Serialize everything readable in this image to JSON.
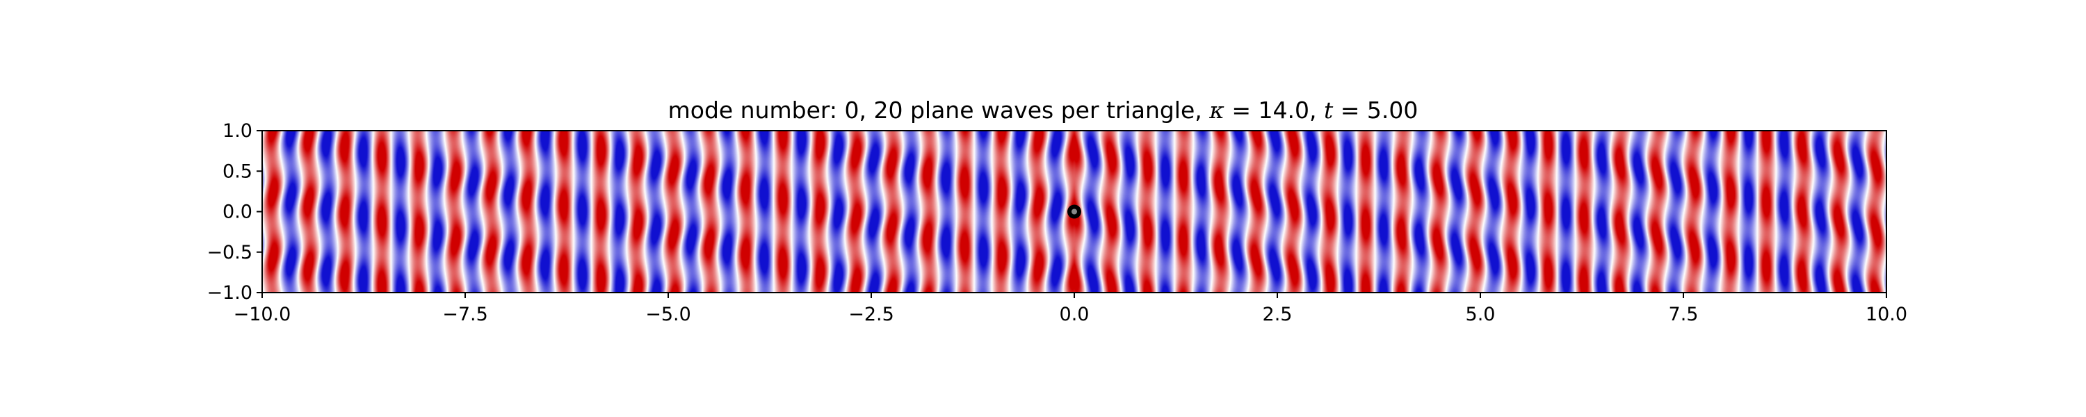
{
  "chart_data": {
    "type": "heatmap",
    "title_parts": {
      "prefix": "mode number: 0, 20 plane waves per triangle, ",
      "kappa_symbol": "κ",
      "kappa_eq": " = 14.0, ",
      "t_symbol": "t",
      "t_eq": " = 5.00"
    },
    "xlabel": "",
    "ylabel": "",
    "xlim": [
      -10.0,
      10.0
    ],
    "ylim": [
      -1.0,
      1.0
    ],
    "x_ticks": [
      -10.0,
      -7.5,
      -5.0,
      -2.5,
      0.0,
      2.5,
      5.0,
      7.5,
      10.0
    ],
    "x_tick_labels": [
      "−10.0",
      "−7.5",
      "−5.0",
      "−2.5",
      "0.0",
      "2.5",
      "5.0",
      "7.5",
      "10.0"
    ],
    "y_ticks": [
      1.0,
      0.5,
      0.0,
      -0.5,
      -1.0
    ],
    "y_tick_labels": [
      "1.0",
      "0.5",
      "0.0",
      "−0.5",
      "−1.0"
    ],
    "colormap": {
      "negative": "#1010d0",
      "zero": "#ffffff",
      "positive": "#d00000"
    },
    "field": {
      "wavenumber": 14.0,
      "transverse_mode_count": 5,
      "transverse_modulation": 0.35
    },
    "source_marker": {
      "x": 0.0,
      "y": 0.0,
      "color": "#000000"
    },
    "grid": false,
    "legend": "none"
  }
}
